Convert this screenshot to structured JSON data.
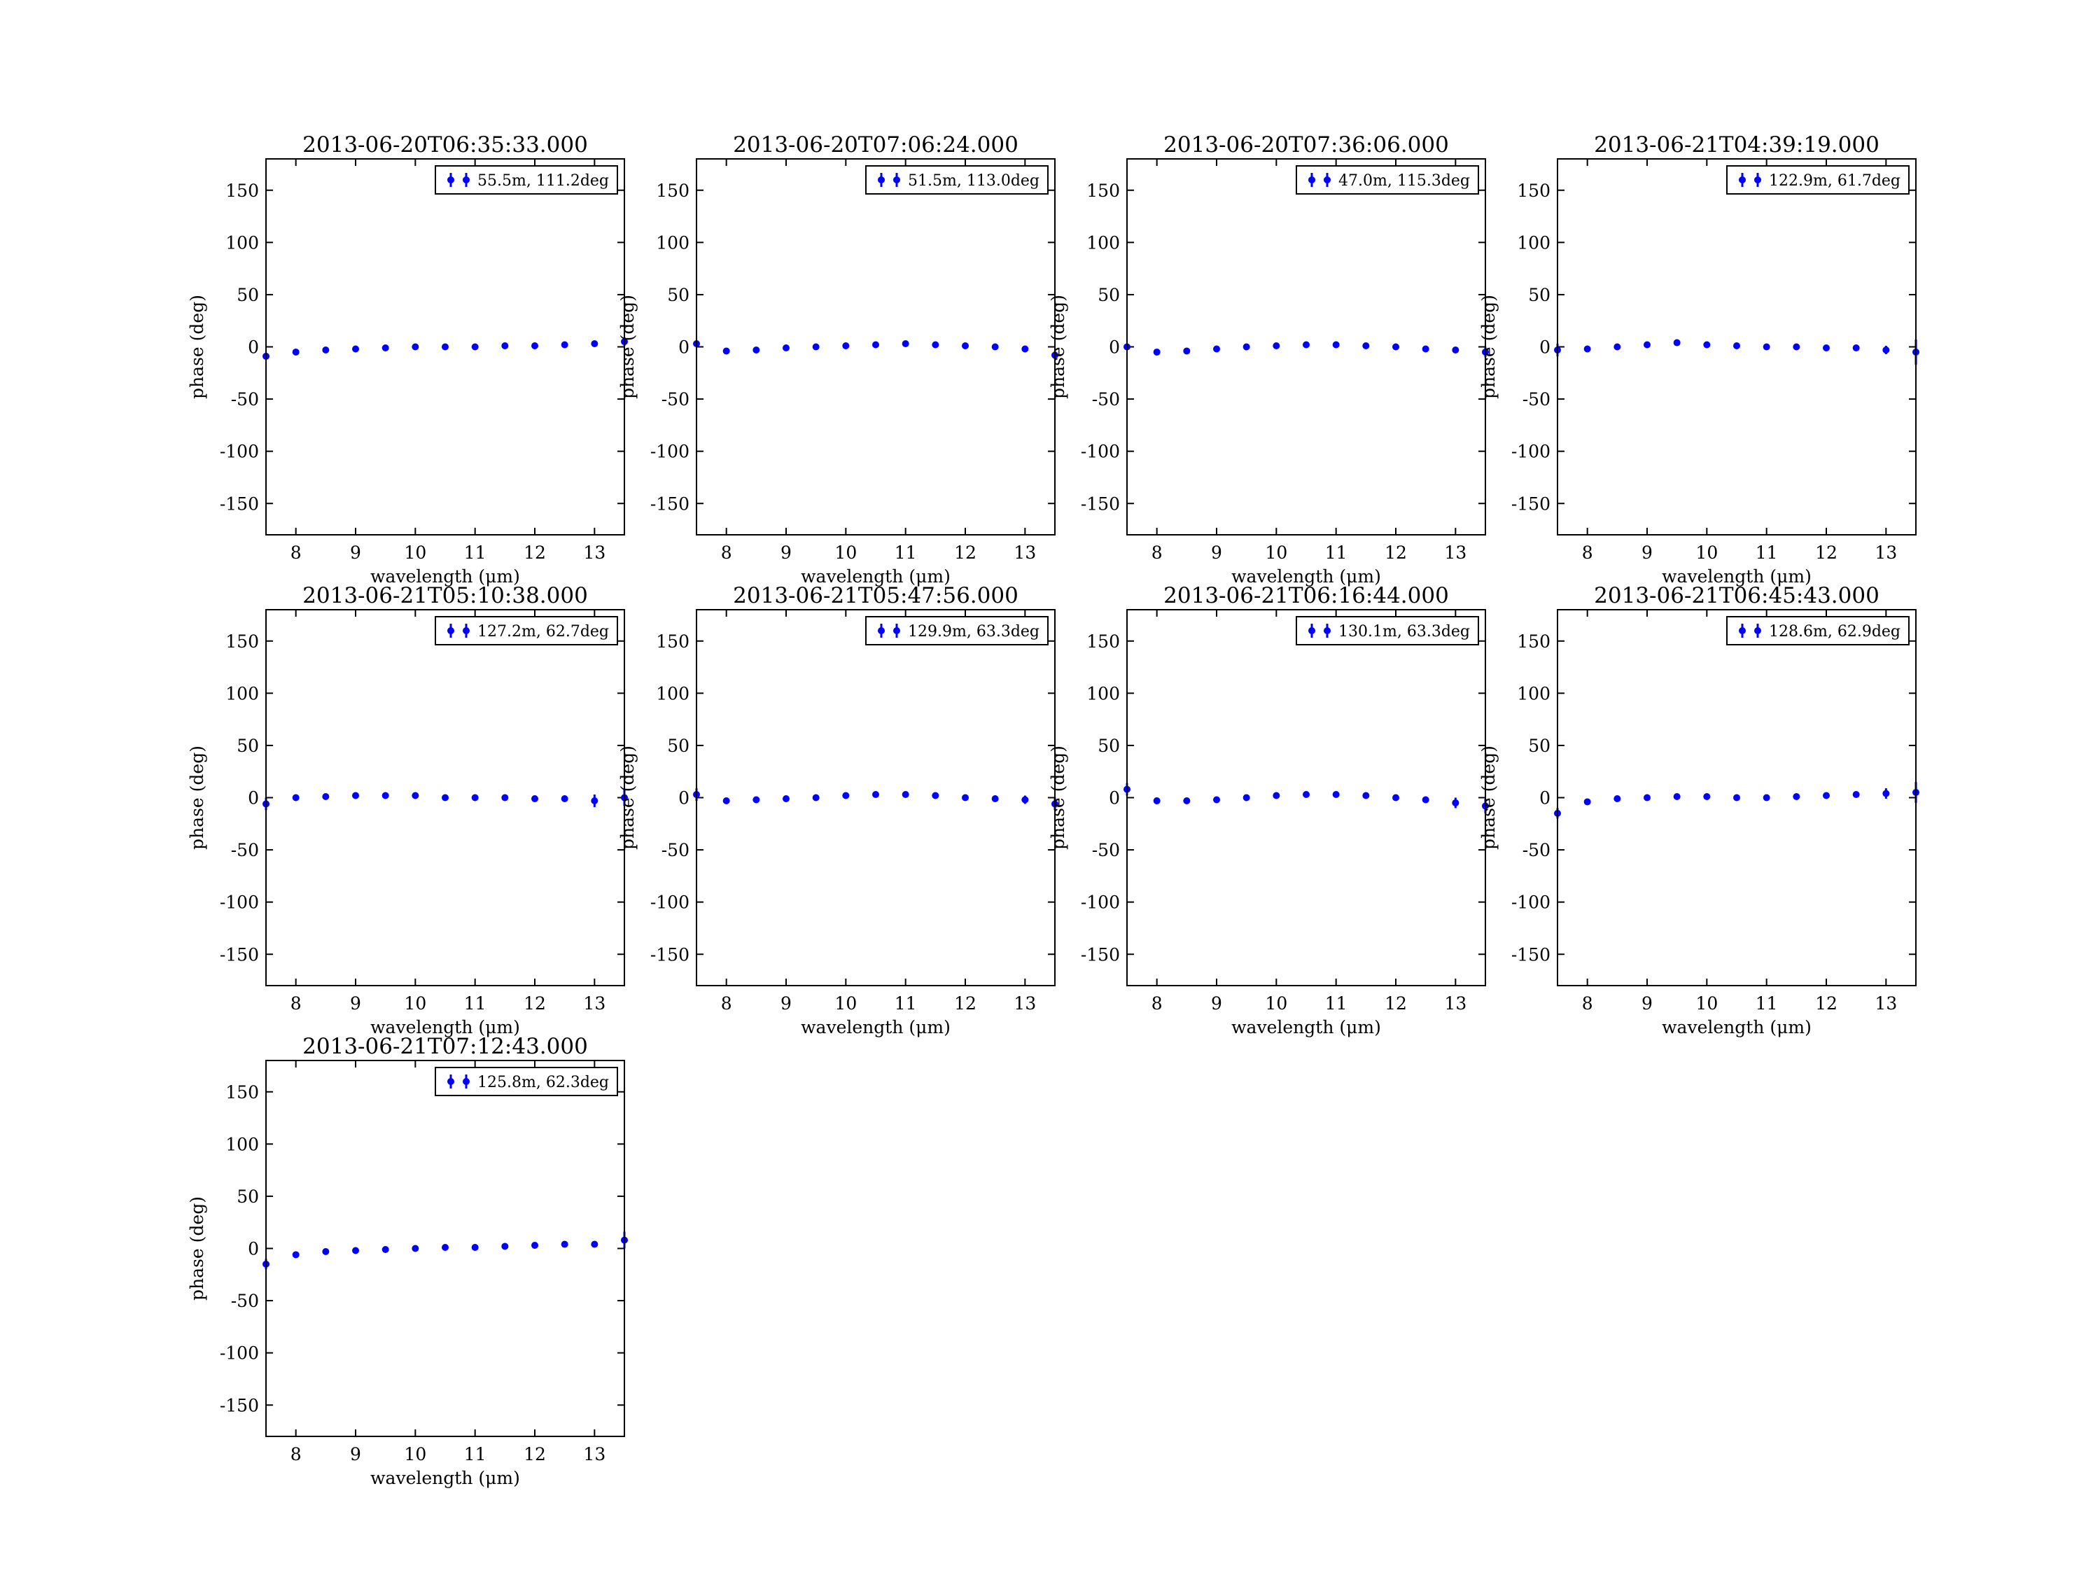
{
  "chart_data": [
    {
      "type": "errorbar",
      "title": "2013-06-20T06:35:33.000",
      "xlabel": "wavelength (μm)",
      "ylabel": "phase (deg)",
      "xlim": [
        7.5,
        13.5
      ],
      "xticks": [
        8,
        9,
        10,
        11,
        12,
        13
      ],
      "ylim": [
        -180,
        180
      ],
      "yticks": [
        -150,
        -100,
        -50,
        0,
        50,
        100,
        150
      ],
      "grid": false,
      "legend": "upper right",
      "x": [
        7.5,
        8,
        8.5,
        9,
        9.5,
        10,
        10.5,
        11,
        11.5,
        12,
        12.5,
        13,
        13.5
      ],
      "series": [
        {
          "name": "55.5m, 111.2deg",
          "color": "#0000ff",
          "values": [
            -9,
            -5,
            -3,
            -2,
            -1,
            0,
            0,
            0,
            1,
            1,
            2,
            3,
            5
          ],
          "errors": [
            3,
            2,
            1,
            1,
            1,
            1,
            1,
            1,
            1,
            1,
            1,
            2,
            4
          ]
        }
      ]
    },
    {
      "type": "errorbar",
      "title": "2013-06-20T07:06:24.000",
      "xlabel": "wavelength (μm)",
      "ylabel": "phase (deg)",
      "xlim": [
        7.5,
        13.5
      ],
      "xticks": [
        8,
        9,
        10,
        11,
        12,
        13
      ],
      "ylim": [
        -180,
        180
      ],
      "yticks": [
        -150,
        -100,
        -50,
        0,
        50,
        100,
        150
      ],
      "grid": false,
      "legend": "upper right",
      "x": [
        7.5,
        8,
        8.5,
        9,
        9.5,
        10,
        10.5,
        11,
        11.5,
        12,
        12.5,
        13,
        13.5
      ],
      "series": [
        {
          "name": "51.5m, 113.0deg",
          "color": "#0000ff",
          "values": [
            3,
            -4,
            -3,
            -1,
            0,
            1,
            2,
            3,
            2,
            1,
            0,
            -2,
            -8
          ],
          "errors": [
            3,
            2,
            1,
            1,
            1,
            1,
            1,
            1,
            1,
            1,
            1,
            2,
            4
          ]
        }
      ]
    },
    {
      "type": "errorbar",
      "title": "2013-06-20T07:36:06.000",
      "xlabel": "wavelength (μm)",
      "ylabel": "phase (deg)",
      "xlim": [
        7.5,
        13.5
      ],
      "xticks": [
        8,
        9,
        10,
        11,
        12,
        13
      ],
      "ylim": [
        -180,
        180
      ],
      "yticks": [
        -150,
        -100,
        -50,
        0,
        50,
        100,
        150
      ],
      "grid": false,
      "legend": "upper right",
      "x": [
        7.5,
        8,
        8.5,
        9,
        9.5,
        10,
        10.5,
        11,
        11.5,
        12,
        12.5,
        13,
        13.5
      ],
      "series": [
        {
          "name": "47.0m, 115.3deg",
          "color": "#0000ff",
          "values": [
            0,
            -5,
            -4,
            -2,
            0,
            1,
            2,
            2,
            1,
            0,
            -2,
            -3,
            -5
          ],
          "errors": [
            3,
            2,
            1,
            1,
            1,
            1,
            1,
            1,
            1,
            1,
            2,
            3,
            5
          ]
        }
      ]
    },
    {
      "type": "errorbar",
      "title": "2013-06-21T04:39:19.000",
      "xlabel": "wavelength (μm)",
      "ylabel": "phase (deg)",
      "xlim": [
        7.5,
        13.5
      ],
      "xticks": [
        8,
        9,
        10,
        11,
        12,
        13
      ],
      "ylim": [
        -180,
        180
      ],
      "yticks": [
        -150,
        -100,
        -50,
        0,
        50,
        100,
        150
      ],
      "grid": false,
      "legend": "upper right",
      "x": [
        7.5,
        8,
        8.5,
        9,
        9.5,
        10,
        10.5,
        11,
        11.5,
        12,
        12.5,
        13,
        13.5
      ],
      "series": [
        {
          "name": "122.9m, 61.7deg",
          "color": "#0000ff",
          "values": [
            -3,
            -2,
            0,
            2,
            4,
            2,
            1,
            0,
            0,
            -1,
            -1,
            -3,
            -5
          ],
          "errors": [
            6,
            3,
            2,
            2,
            2,
            2,
            2,
            2,
            2,
            2,
            2,
            4,
            12
          ]
        }
      ]
    },
    {
      "type": "errorbar",
      "title": "2013-06-21T05:10:38.000",
      "xlabel": "wavelength (μm)",
      "ylabel": "phase (deg)",
      "xlim": [
        7.5,
        13.5
      ],
      "xticks": [
        8,
        9,
        10,
        11,
        12,
        13
      ],
      "ylim": [
        -180,
        180
      ],
      "yticks": [
        -150,
        -100,
        -50,
        0,
        50,
        100,
        150
      ],
      "grid": false,
      "legend": "upper right",
      "x": [
        7.5,
        8,
        8.5,
        9,
        9.5,
        10,
        10.5,
        11,
        11.5,
        12,
        12.5,
        13,
        13.5
      ],
      "series": [
        {
          "name": "127.2m, 62.7deg",
          "color": "#0000ff",
          "values": [
            -6,
            0,
            1,
            2,
            2,
            2,
            0,
            0,
            0,
            -1,
            -1,
            -3,
            0
          ],
          "errors": [
            6,
            3,
            2,
            2,
            2,
            2,
            2,
            2,
            2,
            2,
            3,
            6,
            8
          ]
        }
      ]
    },
    {
      "type": "errorbar",
      "title": "2013-06-21T05:47:56.000",
      "xlabel": "wavelength (μm)",
      "ylabel": "phase (deg)",
      "xlim": [
        7.5,
        13.5
      ],
      "xticks": [
        8,
        9,
        10,
        11,
        12,
        13
      ],
      "ylim": [
        -180,
        180
      ],
      "yticks": [
        -150,
        -100,
        -50,
        0,
        50,
        100,
        150
      ],
      "grid": false,
      "legend": "upper right",
      "x": [
        7.5,
        8,
        8.5,
        9,
        9.5,
        10,
        10.5,
        11,
        11.5,
        12,
        12.5,
        13,
        13.5
      ],
      "series": [
        {
          "name": "129.9m, 63.3deg",
          "color": "#0000ff",
          "values": [
            3,
            -3,
            -2,
            -1,
            0,
            2,
            3,
            3,
            2,
            0,
            -1,
            -2,
            -6
          ],
          "errors": [
            6,
            3,
            2,
            2,
            2,
            2,
            2,
            2,
            2,
            2,
            3,
            4,
            6
          ]
        }
      ]
    },
    {
      "type": "errorbar",
      "title": "2013-06-21T06:16:44.000",
      "xlabel": "wavelength (μm)",
      "ylabel": "phase (deg)",
      "xlim": [
        7.5,
        13.5
      ],
      "xticks": [
        8,
        9,
        10,
        11,
        12,
        13
      ],
      "ylim": [
        -180,
        180
      ],
      "yticks": [
        -150,
        -100,
        -50,
        0,
        50,
        100,
        150
      ],
      "grid": false,
      "legend": "upper right",
      "x": [
        7.5,
        8,
        8.5,
        9,
        9.5,
        10,
        10.5,
        11,
        11.5,
        12,
        12.5,
        13,
        13.5
      ],
      "series": [
        {
          "name": "130.1m, 63.3deg",
          "color": "#0000ff",
          "values": [
            8,
            -3,
            -3,
            -2,
            0,
            2,
            3,
            3,
            2,
            0,
            -2,
            -5,
            -8
          ],
          "errors": [
            6,
            3,
            2,
            2,
            2,
            2,
            2,
            2,
            2,
            2,
            3,
            5,
            7
          ]
        }
      ]
    },
    {
      "type": "errorbar",
      "title": "2013-06-21T06:45:43.000",
      "xlabel": "wavelength (μm)",
      "ylabel": "phase (deg)",
      "xlim": [
        7.5,
        13.5
      ],
      "xticks": [
        8,
        9,
        10,
        11,
        12,
        13
      ],
      "ylim": [
        -180,
        180
      ],
      "yticks": [
        -150,
        -100,
        -50,
        0,
        50,
        100,
        150
      ],
      "grid": false,
      "legend": "upper right",
      "x": [
        7.5,
        8,
        8.5,
        9,
        9.5,
        10,
        10.5,
        11,
        11.5,
        12,
        12.5,
        13,
        13.5
      ],
      "series": [
        {
          "name": "128.6m, 62.9deg",
          "color": "#0000ff",
          "values": [
            -15,
            -4,
            -1,
            0,
            1,
            1,
            0,
            0,
            1,
            2,
            3,
            4,
            5
          ],
          "errors": [
            5,
            3,
            2,
            2,
            2,
            2,
            2,
            2,
            2,
            2,
            3,
            5,
            10
          ]
        }
      ]
    },
    {
      "type": "errorbar",
      "title": "2013-06-21T07:12:43.000",
      "xlabel": "wavelength (μm)",
      "ylabel": "phase (deg)",
      "xlim": [
        7.5,
        13.5
      ],
      "xticks": [
        8,
        9,
        10,
        11,
        12,
        13
      ],
      "ylim": [
        -180,
        180
      ],
      "yticks": [
        -150,
        -100,
        -50,
        0,
        50,
        100,
        150
      ],
      "grid": false,
      "legend": "upper right",
      "x": [
        7.5,
        8,
        8.5,
        9,
        9.5,
        10,
        10.5,
        11,
        11.5,
        12,
        12.5,
        13,
        13.5
      ],
      "series": [
        {
          "name": "125.8m, 62.3deg",
          "color": "#0000ff",
          "values": [
            -15,
            -6,
            -3,
            -2,
            -1,
            0,
            1,
            1,
            2,
            3,
            4,
            4,
            8
          ],
          "errors": [
            5,
            3,
            2,
            1,
            1,
            1,
            1,
            1,
            1,
            1,
            2,
            3,
            8
          ]
        }
      ]
    }
  ]
}
